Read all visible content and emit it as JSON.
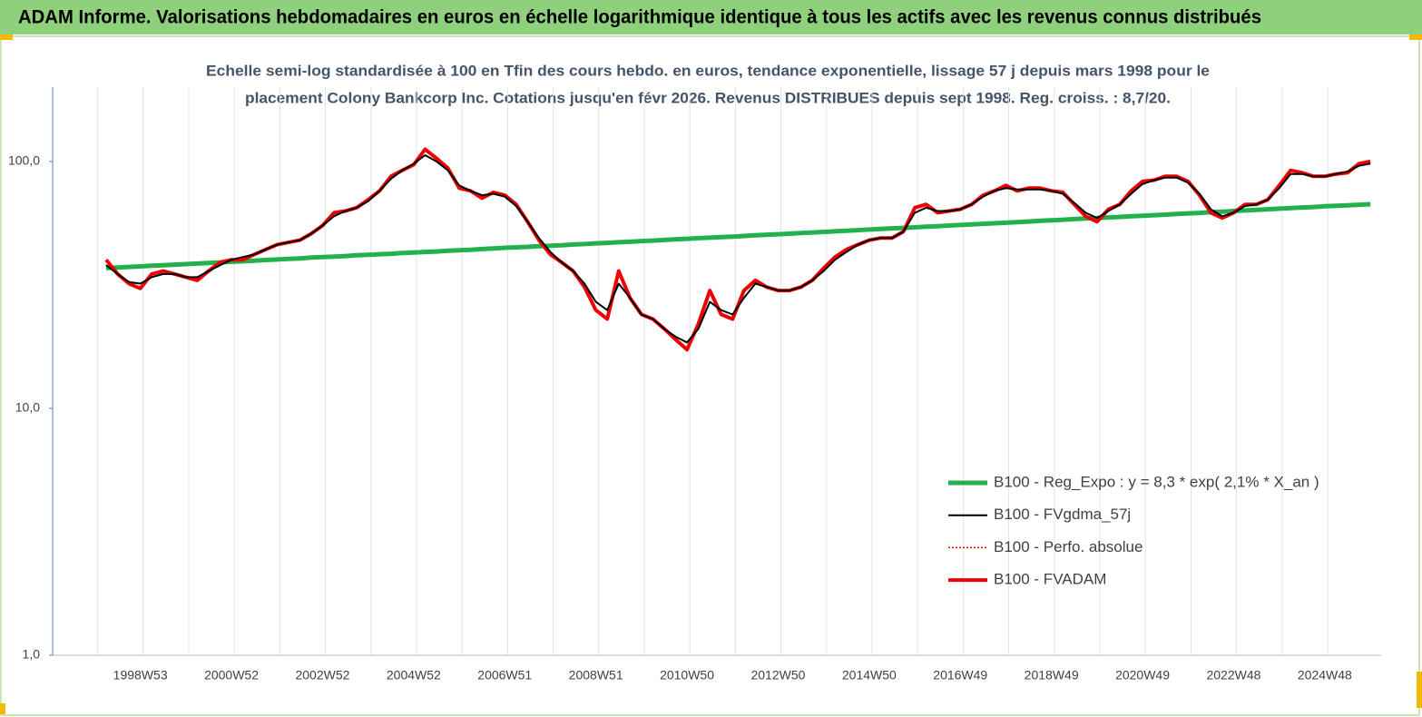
{
  "chart_data": {
    "type": "line",
    "title": "ADAM Informe. Valorisations hebdomadaires en euros en échelle logarithmique identique à tous les actifs avec les revenus connus distribués",
    "subtitle": [
      "Echelle semi-log standardisée à 100 en Tfin des cours hebdo. en euros, tendance exponentielle, lissage 57 j depuis mars 1998 pour le",
      "placement Colony Bankcorp Inc. Cotations jusqu'en févr 2026. Revenus DISTRIBUES depuis sept 1998. Reg. croiss. : 8,7/20."
    ],
    "log_scale": true,
    "ylim": [
      1,
      200
    ],
    "yticks": [
      {
        "value": 1,
        "label": "1,0"
      },
      {
        "value": 10,
        "label": "10,0"
      },
      {
        "value": 100,
        "label": "100,0"
      }
    ],
    "categories": [
      null,
      null,
      null,
      "1998W53",
      null,
      null,
      null,
      null,
      null,
      null,
      null,
      "2000W52",
      null,
      null,
      null,
      null,
      null,
      null,
      null,
      "2002W52",
      null,
      null,
      null,
      null,
      null,
      null,
      null,
      "2004W52",
      null,
      null,
      null,
      null,
      null,
      null,
      null,
      "2006W51",
      null,
      null,
      null,
      null,
      null,
      null,
      null,
      "2008W51",
      null,
      null,
      null,
      null,
      null,
      null,
      null,
      "2010W50",
      null,
      null,
      null,
      null,
      null,
      null,
      null,
      "2012W50",
      null,
      null,
      null,
      null,
      null,
      null,
      null,
      "2014W50",
      null,
      null,
      null,
      null,
      null,
      null,
      null,
      "2016W49",
      null,
      null,
      null,
      null,
      null,
      null,
      null,
      "2018W49",
      null,
      null,
      null,
      null,
      null,
      null,
      null,
      "2020W49",
      null,
      null,
      null,
      null,
      null,
      null,
      null,
      "2022W48",
      null,
      null,
      null,
      null,
      null,
      null,
      null,
      "2024W48",
      null,
      null,
      null,
      null
    ],
    "series": [
      {
        "name": "B100 - Reg_Expo : y = 8,3 * exp( 2,1% *  X_an )",
        "color": "#22b14c",
        "width": 5,
        "values": [
          37.0,
          37.2,
          37.4,
          37.6,
          37.8,
          38.0,
          38.2,
          38.4,
          38.6,
          38.8,
          39.0,
          39.2,
          39.4,
          39.6,
          39.9,
          40.1,
          40.3,
          40.5,
          40.8,
          41.0,
          41.2,
          41.4,
          41.7,
          41.9,
          42.1,
          42.3,
          42.6,
          42.8,
          43.0,
          43.2,
          43.5,
          43.7,
          43.9,
          44.2,
          44.4,
          44.7,
          44.9,
          45.1,
          45.4,
          45.6,
          45.8,
          46.1,
          46.3,
          46.6,
          46.8,
          47.1,
          47.3,
          47.6,
          47.8,
          48.1,
          48.4,
          48.6,
          48.9,
          49.1,
          49.4,
          49.6,
          49.9,
          50.2,
          50.5,
          50.7,
          51.0,
          51.3,
          51.6,
          51.8,
          52.1,
          52.4,
          52.7,
          53.0,
          53.3,
          53.6,
          53.8,
          54.1,
          54.4,
          54.7,
          55.0,
          55.3,
          55.6,
          55.9,
          56.2,
          56.5,
          56.8,
          57.1,
          57.5,
          57.8,
          58.1,
          58.4,
          58.7,
          59.0,
          59.3,
          59.6,
          60.0,
          60.3,
          60.6,
          60.9,
          61.3,
          61.6,
          61.9,
          62.3,
          62.6,
          63.0,
          63.3,
          63.7,
          64.0,
          64.4,
          64.7,
          65.1,
          65.4,
          65.8,
          66.1,
          66.4,
          66.8,
          67.1
        ]
      },
      {
        "name": "B100 - FVgdma_57j",
        "color": "#000000",
        "width": 2,
        "values": [
          38,
          35,
          32.5,
          32,
          34,
          35,
          35,
          34,
          34,
          36,
          38,
          40,
          41,
          42,
          44,
          46,
          47,
          48,
          51,
          55,
          60,
          63,
          65,
          69,
          76,
          85,
          92,
          98,
          106,
          100,
          92,
          80,
          76,
          73,
          74,
          72,
          66,
          57,
          49,
          43,
          39,
          36,
          32,
          27,
          25,
          32,
          28,
          24,
          23,
          21,
          19.5,
          18.5,
          21,
          27,
          25,
          24,
          28,
          32,
          31,
          30,
          30,
          31,
          33,
          36,
          40,
          43,
          46,
          48,
          49,
          49,
          52,
          62,
          65,
          63,
          63,
          64,
          67,
          72,
          76,
          78,
          77,
          77,
          77,
          76,
          74,
          68,
          62,
          59,
          63,
          67,
          74,
          81,
          84,
          86,
          86,
          82,
          74,
          64,
          60,
          62,
          66,
          67,
          70,
          78,
          89,
          89,
          87,
          87,
          89,
          91,
          96,
          98
        ]
      },
      {
        "name": "B100 - Perfo. absolue",
        "color": "#e00000",
        "dashed": true
      },
      {
        "name": "B100 - FVADAM",
        "color": "#ee0000",
        "width": 4,
        "values": [
          40,
          35,
          32,
          30.6,
          35,
          36,
          35,
          34,
          33,
          36,
          39,
          40,
          40,
          42,
          44,
          46,
          47,
          48,
          51,
          55,
          62,
          63,
          65,
          70,
          76,
          87,
          92,
          97,
          112,
          103,
          94,
          78,
          76,
          71,
          75,
          73,
          67,
          57,
          48,
          42,
          39,
          36,
          31,
          25,
          23,
          36,
          28,
          24,
          23,
          21,
          19,
          17.3,
          22,
          30,
          24,
          23,
          30,
          33,
          31,
          30,
          30,
          31,
          33,
          37,
          41,
          44,
          46,
          48,
          49,
          49,
          52,
          65,
          67,
          62,
          63,
          64,
          67,
          73,
          76,
          80,
          76,
          78,
          78,
          76,
          75,
          67,
          60,
          57,
          64,
          67,
          76,
          83,
          84,
          87,
          87,
          83,
          73,
          62,
          59,
          62,
          67,
          67,
          70,
          80,
          92,
          90,
          87,
          87,
          89,
          90,
          98,
          100
        ]
      }
    ]
  }
}
